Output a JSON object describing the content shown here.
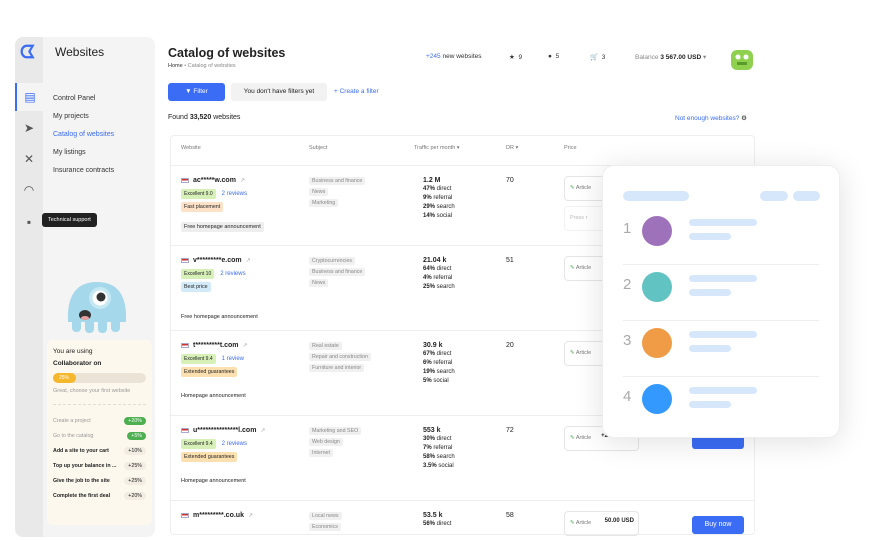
{
  "app": {
    "title": "Websites"
  },
  "sidebar": {
    "items": [
      {
        "label": "Control Panel"
      },
      {
        "label": "My projects"
      },
      {
        "label": "Catalog of websites",
        "active": true
      },
      {
        "label": "My listings"
      },
      {
        "label": "Insurance contracts"
      }
    ],
    "rail_icons": [
      "catalog-icon",
      "send-icon",
      "tools-icon",
      "headset-icon",
      "chat-icon"
    ],
    "tooltip": "Technical support"
  },
  "collab": {
    "line1": "You are using",
    "line2": "Collaborator on",
    "progress": 25,
    "progress_label": "25%",
    "hint": "Great, choose your first website",
    "tasks": [
      {
        "label": "Create a project",
        "pct": "+20%",
        "done": true
      },
      {
        "label": "Go to the catalog",
        "pct": "+5%",
        "done": true
      },
      {
        "label": "Add a site to your cart",
        "pct": "+10%",
        "done": false
      },
      {
        "label": "Top up your balance in ...",
        "pct": "+25%",
        "done": false
      },
      {
        "label": "Give the job to the site",
        "pct": "+25%",
        "done": false
      },
      {
        "label": "Complete the first deal",
        "pct": "+20%",
        "done": false
      }
    ]
  },
  "header": {
    "title": "Catalog of websites",
    "breadcrumb": [
      "Home",
      "Catalog of websites"
    ],
    "new_count": "+245",
    "new_label": "new websites",
    "favorites": "9",
    "messages": "5",
    "cart": "3",
    "balance_label": "Balance",
    "balance": "3 567.00 USD"
  },
  "toolbar": {
    "filter": "Filter",
    "no_filters": "You don't have filters yet",
    "create_filter": "+ Create a filter"
  },
  "found": {
    "prefix": "Found",
    "count": "33,520",
    "suffix": "websites"
  },
  "not_enough": "Not enough websites?",
  "table": {
    "columns": [
      "Website",
      "Subject",
      "Traffic per month ▾",
      "DR ▾",
      "Price"
    ],
    "rows": [
      {
        "domain": "ac*****w.com",
        "rating": "Excellent 9.0",
        "reviews": "2 reviews",
        "tag": "Fast placement",
        "announcement": "Free homepage announcement",
        "subjects": [
          "Business and finance",
          "News",
          "Marketing"
        ],
        "traffic": "1.2 M",
        "direct": "47%",
        "referral": "9%",
        "search": "29%",
        "social": "14%",
        "dr": "70",
        "price_type": "Article",
        "price_type2": "Press r",
        "price": "",
        "buy": ""
      },
      {
        "domain": "v*********e.com",
        "rating": "Excellent 10",
        "reviews": "2 reviews",
        "tag": "Best price",
        "announcement": "Free homepage announcement",
        "subjects": [
          "Cryptocurrencies",
          "Business and finance",
          "News"
        ],
        "traffic": "21.04 k",
        "direct": "64%",
        "referral": "4%",
        "search": "25%",
        "social": "",
        "dr": "51",
        "price_type": "Article",
        "price": "",
        "buy": ""
      },
      {
        "domain": "t*********t.com",
        "rating": "Excellent 9.4",
        "reviews": "1 review",
        "tag": "Extended guarantees",
        "announcement": "Homepage announcement",
        "subjects": [
          "Real estate",
          "Repair and construction",
          "Furniture and interior"
        ],
        "traffic": "30.9 k",
        "direct": "67%",
        "referral": "6%",
        "search": "19%",
        "social": "5%",
        "dr": "20",
        "price_type": "Article",
        "price": "",
        "buy": ""
      },
      {
        "domain": "u***************l.com",
        "rating": "Excellent 9.4",
        "reviews": "2 reviews",
        "tag": "Extended guarantees",
        "announcement": "Homepage announcement",
        "subjects": [
          "Marketing and SEO",
          "Web design",
          "Internet"
        ],
        "traffic": "553 k",
        "direct": "30%",
        "referral": "7%",
        "search": "58%",
        "social": "3.5%",
        "dr": "72",
        "price_type": "Article",
        "price": "+20.00 USD",
        "buy": ""
      },
      {
        "domain": "m*********.co.uk",
        "rating": "",
        "reviews": "",
        "tag": "",
        "announcement": "",
        "subjects": [
          "Local news",
          "Economics"
        ],
        "traffic": "53.5 k",
        "direct": "56%",
        "referral": "",
        "search": "",
        "social": "",
        "dr": "58",
        "price_type": "Article",
        "price": "50.00 USD",
        "buy": "Buy now"
      }
    ]
  },
  "overlay": {
    "ranks": [
      "1",
      "2",
      "3",
      "4"
    ],
    "colors": [
      "#9e72bb",
      "#62c3c3",
      "#f09b45",
      "#3399ff"
    ]
  },
  "colors": {
    "accent": "#3b6cf5",
    "success": "#4caf50",
    "progress": "#f5b72b"
  }
}
